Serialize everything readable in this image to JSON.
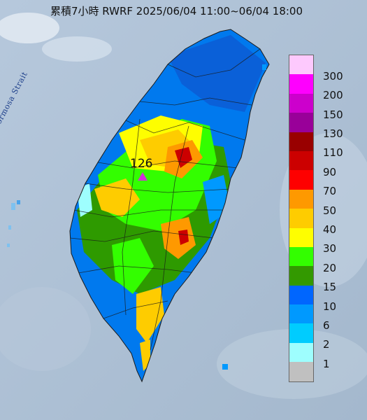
{
  "title": "累積7小時 RWRF 2025/06/04 11:00~06/04 18:00",
  "strait_label": "Formosa Strait",
  "peak": {
    "value": "126"
  },
  "legend": {
    "items": [
      {
        "label": "300",
        "color": "#fdc9fd"
      },
      {
        "label": "200",
        "color": "#fe00fe"
      },
      {
        "label": "150",
        "color": "#cc00cc"
      },
      {
        "label": "130",
        "color": "#990099"
      },
      {
        "label": "110",
        "color": "#990000"
      },
      {
        "label": "90",
        "color": "#cc0000"
      },
      {
        "label": "70",
        "color": "#fe0000"
      },
      {
        "label": "50",
        "color": "#fe9900"
      },
      {
        "label": "40",
        "color": "#fecc00"
      },
      {
        "label": "30",
        "color": "#fefe00"
      },
      {
        "label": "20",
        "color": "#33fe00"
      },
      {
        "label": "15",
        "color": "#339900"
      },
      {
        "label": "10",
        "color": "#0066fe"
      },
      {
        "label": "6",
        "color": "#0099fe"
      },
      {
        "label": "2",
        "color": "#00ccfe"
      },
      {
        "label": "1",
        "color": "#9efefe"
      },
      {
        "label": "",
        "color": "#c0c0c0"
      }
    ]
  }
}
